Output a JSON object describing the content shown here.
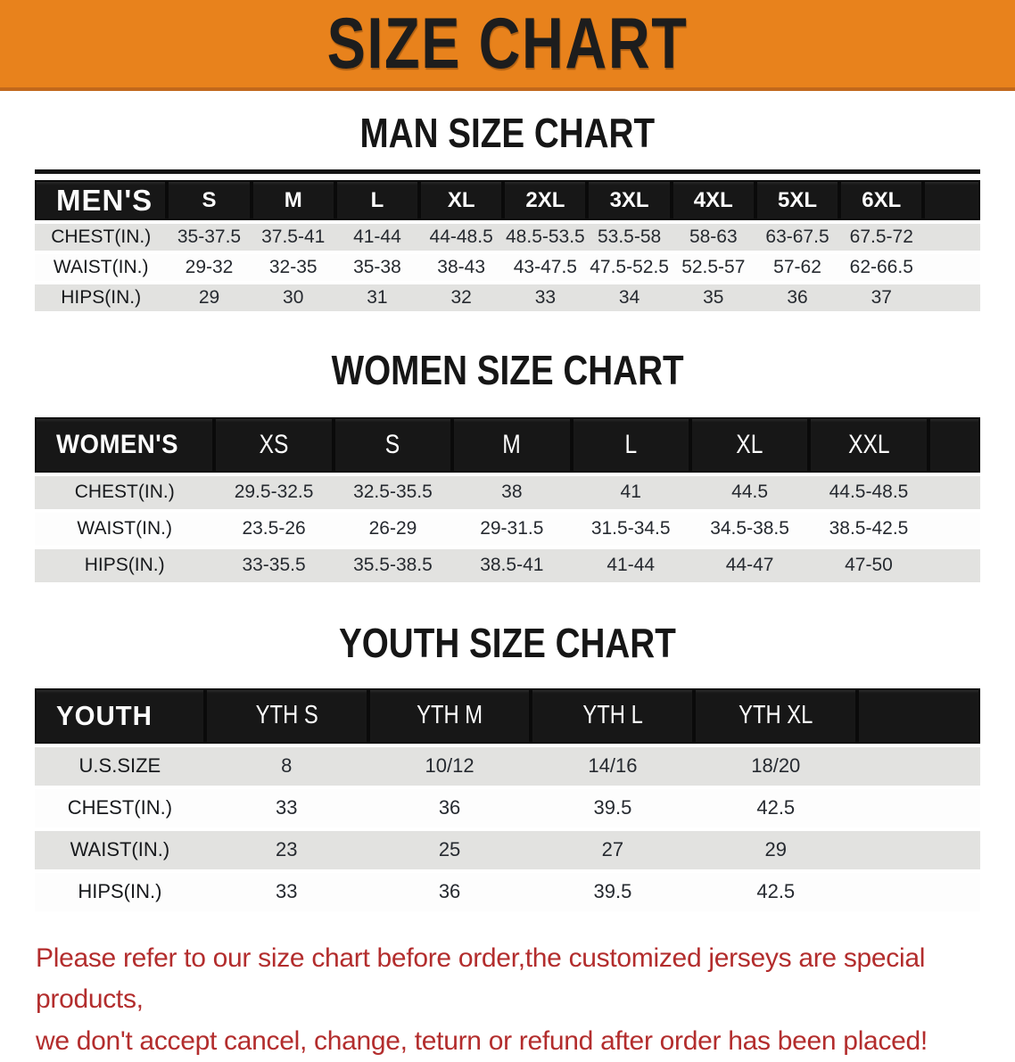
{
  "banner": {
    "title": "SIZE CHART",
    "bg_color": "#E8821C",
    "text_color": "#1d1d1d"
  },
  "sections": [
    {
      "heading": "MAN SIZE CHART",
      "table": {
        "group_label": "MEN'S",
        "columns": [
          "S",
          "M",
          "L",
          "XL",
          "2XL",
          "3XL",
          "4XL",
          "5XL",
          "6XL"
        ],
        "rows": [
          {
            "label": "CHEST(IN.)",
            "values": [
              "35-37.5",
              "37.5-41",
              "41-44",
              "44-48.5",
              "48.5-53.5",
              "53.5-58",
              "58-63",
              "63-67.5",
              "67.5-72"
            ]
          },
          {
            "label": "WAIST(IN.)",
            "values": [
              "29-32",
              "32-35",
              "35-38",
              "38-43",
              "43-47.5",
              "47.5-52.5",
              "52.5-57",
              "57-62",
              "62-66.5"
            ]
          },
          {
            "label": "HIPS(IN.)",
            "values": [
              "29",
              "30",
              "31",
              "32",
              "33",
              "34",
              "35",
              "36",
              "37"
            ]
          }
        ]
      }
    },
    {
      "heading": "WOMEN SIZE CHART",
      "table": {
        "group_label": "WOMEN'S",
        "columns": [
          "XS",
          "S",
          "M",
          "L",
          "XL",
          "XXL"
        ],
        "rows": [
          {
            "label": "CHEST(IN.)",
            "values": [
              "29.5-32.5",
              "32.5-35.5",
              "38",
              "41",
              "44.5",
              "44.5-48.5"
            ]
          },
          {
            "label": "WAIST(IN.)",
            "values": [
              "23.5-26",
              "26-29",
              "29-31.5",
              "31.5-34.5",
              "34.5-38.5",
              "38.5-42.5"
            ]
          },
          {
            "label": "HIPS(IN.)",
            "values": [
              "33-35.5",
              "35.5-38.5",
              "38.5-41",
              "41-44",
              "44-47",
              "47-50"
            ]
          }
        ]
      }
    },
    {
      "heading": "YOUTH SIZE CHART",
      "table": {
        "group_label": "YOUTH",
        "columns": [
          "YTH S",
          "YTH M",
          "YTH L",
          "YTH XL"
        ],
        "rows": [
          {
            "label": "U.S.SIZE",
            "values": [
              "8",
              "10/12",
              "14/16",
              "18/20"
            ]
          },
          {
            "label": "CHEST(IN.)",
            "values": [
              "33",
              "36",
              "39.5",
              "42.5"
            ]
          },
          {
            "label": "WAIST(IN.)",
            "values": [
              "23",
              "25",
              "27",
              "29"
            ]
          },
          {
            "label": "HIPS(IN.)",
            "values": [
              "33",
              "36",
              "39.5",
              "42.5"
            ]
          }
        ]
      }
    }
  ],
  "disclaimer": {
    "line1": "Please refer to our size chart before order,the customized jerseys are special products,",
    "line2": "we don't accept cancel, change, teturn or refund after order has been placed!",
    "text_color": "#B32D2D"
  }
}
